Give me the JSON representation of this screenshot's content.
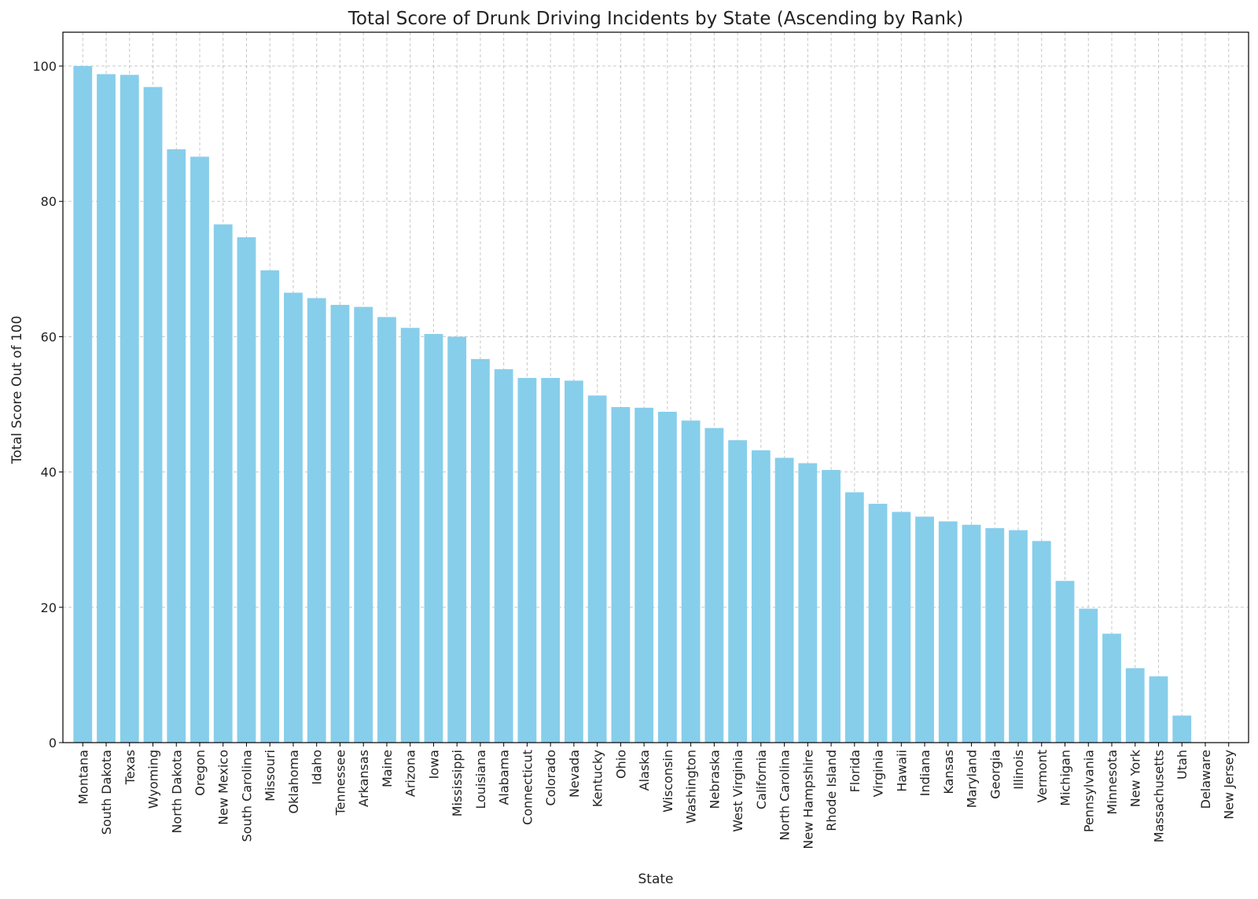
{
  "chart_data": {
    "type": "bar",
    "title": "Total Score of Drunk Driving Incidents by State (Ascending by Rank)",
    "xlabel": "State",
    "ylabel": "Total Score Out of 100",
    "ylim": [
      0,
      105
    ],
    "yticks": [
      0,
      20,
      40,
      60,
      80,
      100
    ],
    "grid": true,
    "bar_color": "#87CEEB",
    "categories": [
      "Montana",
      "South Dakota",
      "Texas",
      "Wyoming",
      "North Dakota",
      "Oregon",
      "New Mexico",
      "South Carolina",
      "Missouri",
      "Oklahoma",
      "Idaho",
      "Tennessee",
      "Arkansas",
      "Maine",
      "Arizona",
      "Iowa",
      "Mississippi",
      "Louisiana",
      "Alabama",
      "Connecticut",
      "Colorado",
      "Nevada",
      "Kentucky",
      "Ohio",
      "Alaska",
      "Wisconsin",
      "Washington",
      "Nebraska",
      "West Virginia",
      "California",
      "North Carolina",
      "New Hampshire",
      "Rhode Island",
      "Florida",
      "Virginia",
      "Hawaii",
      "Indiana",
      "Kansas",
      "Maryland",
      "Georgia",
      "Illinois",
      "Vermont",
      "Michigan",
      "Pennsylvania",
      "Minnesota",
      "New York",
      "Massachusetts",
      "Utah",
      "Delaware",
      "New Jersey"
    ],
    "values": [
      100.0,
      98.8,
      98.7,
      96.9,
      87.7,
      86.6,
      76.6,
      74.7,
      69.8,
      66.5,
      65.7,
      64.7,
      64.4,
      62.9,
      61.3,
      60.4,
      60.0,
      56.7,
      55.2,
      53.9,
      53.9,
      53.5,
      51.3,
      49.6,
      49.5,
      48.9,
      47.6,
      46.5,
      44.7,
      43.2,
      42.1,
      41.3,
      40.3,
      37.0,
      35.3,
      34.1,
      33.4,
      32.7,
      32.2,
      31.7,
      31.4,
      29.8,
      23.9,
      19.8,
      16.1,
      11.0,
      9.8,
      4.0,
      0.0,
      0.0
    ]
  }
}
